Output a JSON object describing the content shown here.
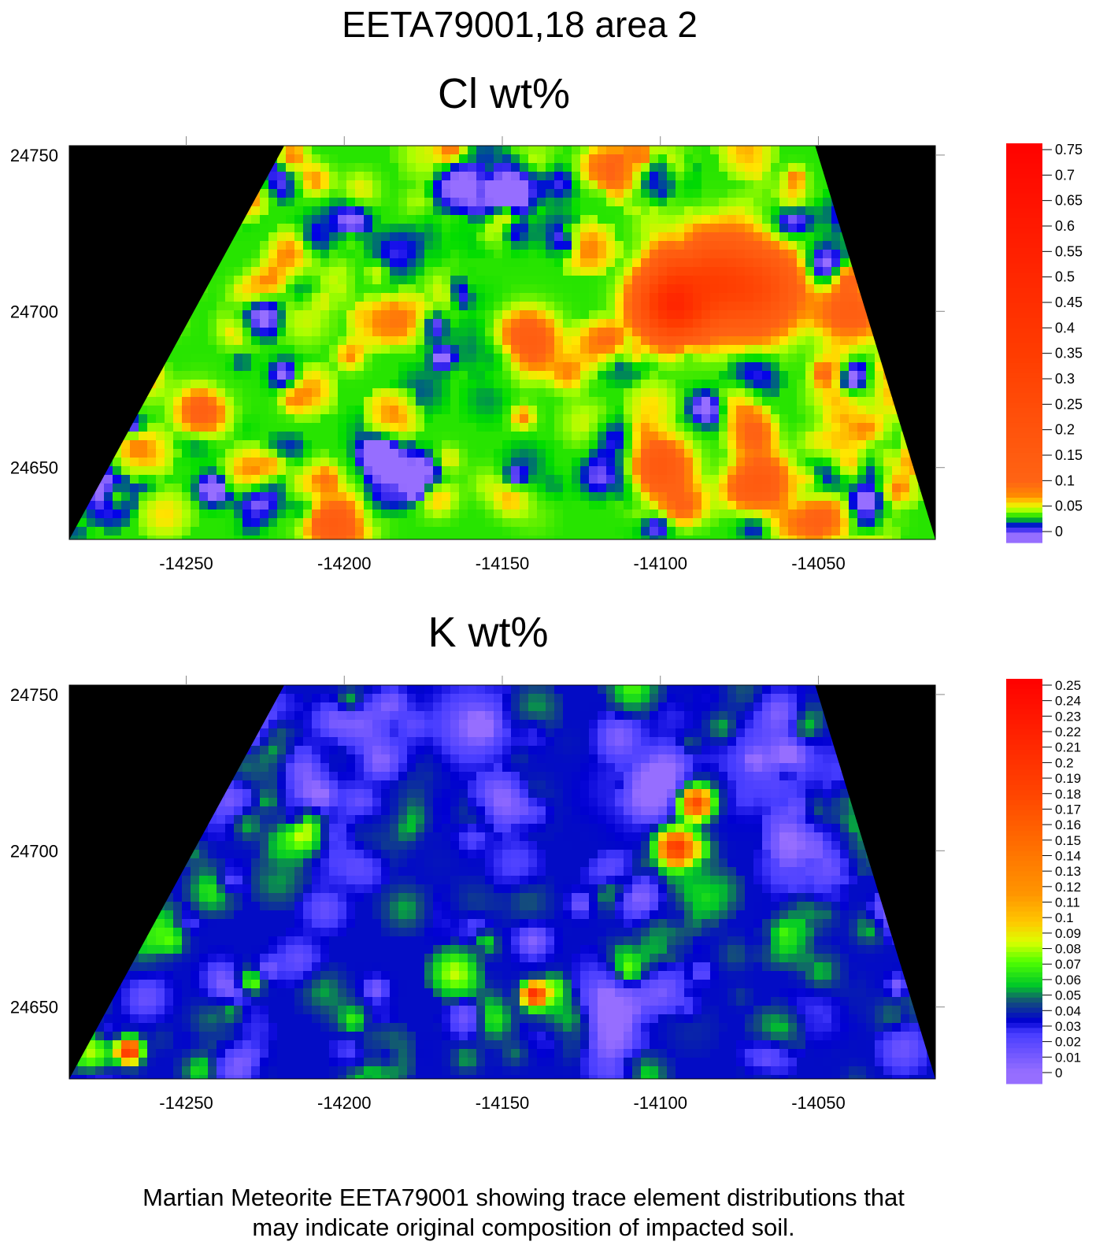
{
  "page": {
    "title": "EETA79001,18 area 2",
    "caption_line1": "Martian Meteorite EETA79001 showing trace element distributions that",
    "caption_line2": "may indicate original composition of impacted soil."
  },
  "chart_data": [
    {
      "type": "heatmap",
      "title": "Cl wt%",
      "xlabel": "",
      "ylabel": "",
      "x_range": [
        -14287,
        -14013
      ],
      "y_range": [
        24627,
        24753
      ],
      "x_ticks": [
        -14250,
        -14200,
        -14150,
        -14100,
        -14050
      ],
      "y_ticks": [
        24750,
        24700,
        24650
      ],
      "colorbar": {
        "ticks": [
          0.75,
          0.7,
          0.65,
          0.6,
          0.55,
          0.5,
          0.45,
          0.4,
          0.35,
          0.3,
          0.25,
          0.2,
          0.15,
          0.1,
          0.05,
          0
        ],
        "min": -0.005,
        "max": 0.78
      },
      "scan_region": [
        [
          -14287,
          24627
        ],
        [
          -14219,
          24753
        ],
        [
          -14051,
          24753
        ],
        [
          -14013,
          24627
        ]
      ],
      "background": 0.03,
      "noise_amplitude": 0.05,
      "features": [
        {
          "x": -14096,
          "y": 24702,
          "value": 0.42,
          "radius": 7
        },
        {
          "x": -14085,
          "y": 24710,
          "value": 0.22,
          "radius": 9
        },
        {
          "x": -14070,
          "y": 24707,
          "value": 0.2,
          "radius": 9
        },
        {
          "x": -14142,
          "y": 24690,
          "value": 0.12,
          "radius": 6
        },
        {
          "x": -14245,
          "y": 24668,
          "value": 0.1,
          "radius": 5
        },
        {
          "x": -14100,
          "y": 24650,
          "value": 0.12,
          "radius": 6
        },
        {
          "x": -14068,
          "y": 24645,
          "value": 0.11,
          "radius": 6
        },
        {
          "x": -14202,
          "y": 24632,
          "value": 0.11,
          "radius": 6
        },
        {
          "x": -14040,
          "y": 24700,
          "value": 0.1,
          "radius": 6
        }
      ]
    },
    {
      "type": "heatmap",
      "title": "K wt%",
      "xlabel": "",
      "ylabel": "",
      "x_range": [
        -14287,
        -14013
      ],
      "y_range": [
        24627,
        24753
      ],
      "x_ticks": [
        -14250,
        -14200,
        -14150,
        -14100,
        -14050
      ],
      "y_ticks": [
        24750,
        24700,
        24650
      ],
      "colorbar": {
        "ticks": [
          0.25,
          0.24,
          0.23,
          0.22,
          0.21,
          0.2,
          0.19,
          0.18,
          0.17,
          0.16,
          0.15,
          0.14,
          0.13,
          0.12,
          0.11,
          0.1,
          0.09,
          0.08,
          0.07,
          0.06,
          0.05,
          0.04,
          0.03,
          0.02,
          0.01,
          0
        ],
        "min": 0,
        "max": 0.255
      },
      "scan_region": [
        [
          -14287,
          24627
        ],
        [
          -14219,
          24753
        ],
        [
          -14051,
          24753
        ],
        [
          -14013,
          24627
        ]
      ],
      "background": 0.035,
      "noise_amplitude": 0.03,
      "features": [
        {
          "x": -14095,
          "y": 24701,
          "value": 0.16,
          "radius": 4
        },
        {
          "x": -14089,
          "y": 24715,
          "value": 0.14,
          "radius": 3.5
        },
        {
          "x": -14140,
          "y": 24654,
          "value": 0.16,
          "radius": 2.5
        },
        {
          "x": -14268,
          "y": 24636,
          "value": 0.17,
          "radius": 2.5
        },
        {
          "x": -14212,
          "y": 24705,
          "value": 0.05,
          "radius": 5
        },
        {
          "x": -14280,
          "y": 24635,
          "value": 0.05,
          "radius": 5
        },
        {
          "x": -14117,
          "y": 24648,
          "value": -0.025,
          "radius": 7
        },
        {
          "x": -14160,
          "y": 24740,
          "value": -0.025,
          "radius": 8
        },
        {
          "x": -14100,
          "y": 24720,
          "value": -0.02,
          "radius": 9
        },
        {
          "x": -14065,
          "y": 24730,
          "value": -0.02,
          "radius": 10
        }
      ]
    }
  ]
}
